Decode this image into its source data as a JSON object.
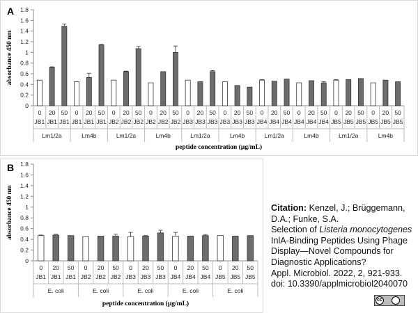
{
  "panel_a_letter": "A",
  "panel_b_letter": "B",
  "chart_data": [
    {
      "type": "bar",
      "ylabel": "absorbance 450 nm",
      "xlabel": "peptide concentration (µg/mL)",
      "ylim": [
        0,
        1.8
      ],
      "yticks": [
        "0",
        "0.2",
        "0.4",
        "0.6",
        "0.8",
        "1",
        "1.2",
        "1.4",
        "1.6",
        "1.8"
      ],
      "conc_labels": [
        "0",
        "20",
        "50",
        "0",
        "20",
        "50",
        "0",
        "20",
        "50",
        "0",
        "20",
        "50",
        "0",
        "20",
        "50",
        "0",
        "20",
        "50",
        "0",
        "20",
        "50",
        "0",
        "20",
        "50",
        "0",
        "20",
        "50",
        "0",
        "20",
        "50"
      ],
      "peptide_labels": [
        "JB1",
        "JB1",
        "JB1",
        "JB1",
        "JB1",
        "JB1",
        "JB2",
        "JB2",
        "JB2",
        "JB2",
        "JB2",
        "JB2",
        "JB3",
        "JB3",
        "JB3",
        "JB3",
        "JB3",
        "JB3",
        "JB4",
        "JB4",
        "JB4",
        "JB4",
        "JB4",
        "JB4",
        "JB5",
        "JB5",
        "JB5",
        "JB5",
        "JB5",
        "JB5"
      ],
      "groups": [
        "Lm1/2a",
        "Lm4b",
        "Lm1/2a",
        "Lm4b",
        "Lm1/2a",
        "Lm4b",
        "Lm1/2a",
        "Lm4b",
        "Lm1/2a",
        "Lm4b"
      ],
      "values": [
        0.48,
        0.72,
        1.49,
        0.45,
        0.53,
        1.14,
        0.48,
        0.64,
        1.07,
        0.43,
        0.64,
        1.0,
        0.48,
        0.45,
        0.64,
        0.45,
        0.38,
        0.35,
        0.48,
        0.46,
        0.5,
        0.43,
        0.47,
        0.43,
        0.48,
        0.49,
        0.51,
        0.43,
        0.48,
        0.45
      ],
      "errors": [
        0,
        0.01,
        0.04,
        0,
        0.08,
        0.01,
        0,
        0.01,
        0.04,
        0,
        0,
        0.12,
        0,
        0,
        0.02,
        0,
        0,
        0,
        0.01,
        0,
        0,
        0,
        0,
        0.02,
        0.01,
        0,
        0,
        0,
        0,
        0
      ]
    },
    {
      "type": "bar",
      "ylabel": "absorbance 450 nm",
      "xlabel": "peptide concentration (µg/mL)",
      "ylim": [
        0,
        1.8
      ],
      "yticks": [
        "0",
        "0.2",
        "0.4",
        "0.6",
        "0.8",
        "1",
        "1.2",
        "1.4",
        "1.6",
        "1.8"
      ],
      "conc_labels": [
        "0",
        "20",
        "50",
        "0",
        "20",
        "50",
        "0",
        "20",
        "50",
        "0",
        "20",
        "50",
        "0",
        "20",
        "50"
      ],
      "peptide_labels": [
        "JB1",
        "JB1",
        "JB1",
        "JB2",
        "JB2",
        "JB2",
        "JB3",
        "JB3",
        "JB3",
        "JB4",
        "JB4",
        "JB4",
        "JB5",
        "JB5",
        "JB5"
      ],
      "groups": [
        "E. coli",
        "E. coli",
        "E. coli",
        "E. coli",
        "E. coli"
      ],
      "values": [
        0.47,
        0.48,
        0.47,
        0.45,
        0.46,
        0.46,
        0.45,
        0.46,
        0.52,
        0.46,
        0.46,
        0.47,
        0.47,
        0.46,
        0.47
      ],
      "errors": [
        0.01,
        0.02,
        0,
        0,
        0,
        0.04,
        0.08,
        0.01,
        0.05,
        0.07,
        0,
        0.02,
        0,
        0,
        0
      ]
    }
  ],
  "citation": {
    "label": "Citation:",
    "authors": "Kenzel, J.; Brüggemann, D.A.; Funke, S.A.",
    "title_pre": "Selection of",
    "title_italic": "Listeria monocytogenes",
    "title_post": "InlA-Binding Peptides Using Phage Display—Novel Compounds for Diagnostic Applications?",
    "journal": "Appl. Microbiol. 2022, 2, 921-933.",
    "doi": "doi: 10.3390/applmicrobiol2040070"
  },
  "license_badge": "cc-by-icon"
}
